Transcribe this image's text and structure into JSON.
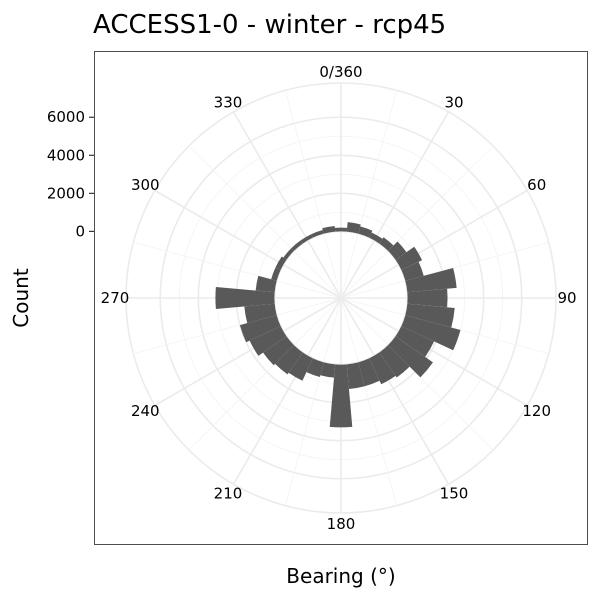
{
  "chart_data": {
    "type": "bar",
    "projection": "polar",
    "title": "ACCESS1-0 - winter - rcp45",
    "xlabel": "Bearing (°)",
    "ylabel": "Count",
    "y_ticks": [
      0,
      2000,
      4000,
      6000
    ],
    "ylim": [
      -3500,
      7800
    ],
    "grid": true,
    "bearing_labels": [
      "0/360",
      "30",
      "60",
      "90",
      "120",
      "150",
      "180",
      "210",
      "240",
      "270",
      "300",
      "330"
    ],
    "bar_color": "#595959",
    "bars": [
      {
        "bearing": 0,
        "count": 200
      },
      {
        "bearing": 10,
        "count": 500
      },
      {
        "bearing": 20,
        "count": 400
      },
      {
        "bearing": 30,
        "count": 300
      },
      {
        "bearing": 40,
        "count": 400
      },
      {
        "bearing": 50,
        "count": 700
      },
      {
        "bearing": 60,
        "count": 1200
      },
      {
        "bearing": 70,
        "count": 1000
      },
      {
        "bearing": 80,
        "count": 2600
      },
      {
        "bearing": 90,
        "count": 2100
      },
      {
        "bearing": 100,
        "count": 2500
      },
      {
        "bearing": 110,
        "count": 3000
      },
      {
        "bearing": 120,
        "count": 1900
      },
      {
        "bearing": 130,
        "count": 2400
      },
      {
        "bearing": 140,
        "count": 1600
      },
      {
        "bearing": 150,
        "count": 1500
      },
      {
        "bearing": 160,
        "count": 1300
      },
      {
        "bearing": 170,
        "count": 1300
      },
      {
        "bearing": 180,
        "count": 3300
      },
      {
        "bearing": 190,
        "count": 700
      },
      {
        "bearing": 200,
        "count": 800
      },
      {
        "bearing": 210,
        "count": 1300
      },
      {
        "bearing": 220,
        "count": 1400
      },
      {
        "bearing": 230,
        "count": 1500
      },
      {
        "bearing": 240,
        "count": 1800
      },
      {
        "bearing": 250,
        "count": 2000
      },
      {
        "bearing": 260,
        "count": 1600
      },
      {
        "bearing": 270,
        "count": 3100
      },
      {
        "bearing": 280,
        "count": 1000
      },
      {
        "bearing": 290,
        "count": 300
      },
      {
        "bearing": 300,
        "count": 300
      },
      {
        "bearing": 310,
        "count": 200
      },
      {
        "bearing": 320,
        "count": 200
      },
      {
        "bearing": 330,
        "count": 200
      },
      {
        "bearing": 340,
        "count": 200
      },
      {
        "bearing": 350,
        "count": 300
      }
    ]
  }
}
